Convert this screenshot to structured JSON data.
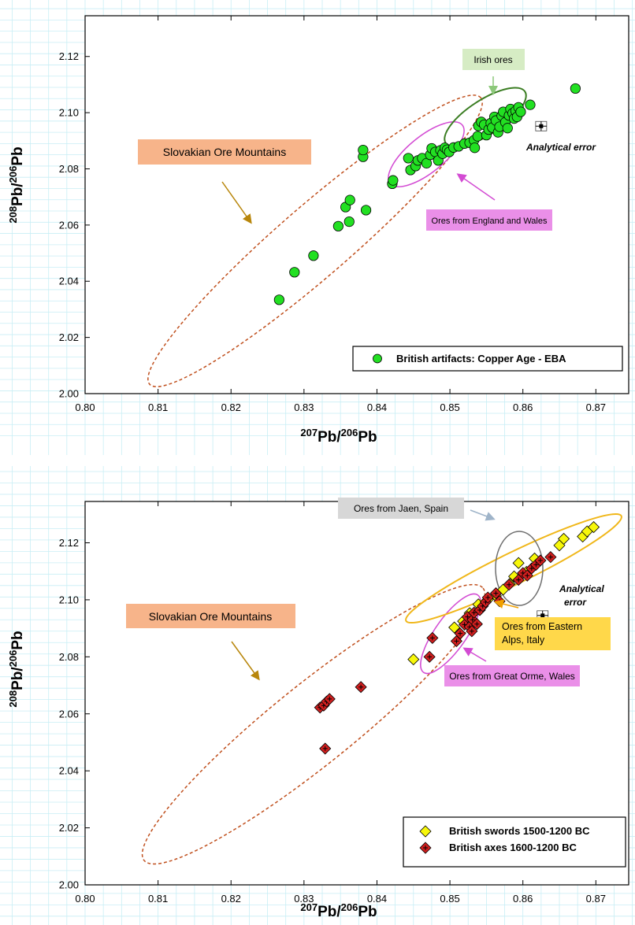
{
  "colors": {
    "grid": "#c8eef5",
    "green_marker": "#22e022",
    "yellow_marker": "#f7f70a",
    "red_marker": "#d21f1f",
    "slovakian_ellipse": "#c0501e",
    "irish_ellipse": "#3a7d22",
    "england_ellipse": "#d34bd3",
    "jaen_ellipse": "#6e6e6e",
    "alps_ellipse": "#f0b71a",
    "slovakian_box": "#f7b48a",
    "irish_box": "#d6ecc4",
    "england_box": "#ea8fe8",
    "jaen_box": "#d7d7d7",
    "alps_box": "#ffd84a"
  },
  "chart_data": [
    {
      "type": "scatter",
      "xlabel": {
        "sup1": "207",
        "base1": "Pb/",
        "sup2": "206",
        "base2": "Pb"
      },
      "ylabel": {
        "sup1": "208",
        "base1": "Pb/",
        "sup2": "206",
        "base2": "Pb"
      },
      "xlim": [
        0.8,
        0.875
      ],
      "ylim": [
        2.0,
        2.13
      ],
      "xticks": [
        "0.80",
        "0.81",
        "0.82",
        "0.83",
        "0.84",
        "0.85",
        "0.86",
        "0.87"
      ],
      "yticks": [
        "2.00",
        "2.02",
        "2.04",
        "2.06",
        "2.08",
        "2.10",
        "2.12"
      ],
      "grid": true,
      "legend_position": "bottom-right",
      "series": [
        {
          "name": "British artifacts: Copper Age - EBA",
          "marker": "circle",
          "points": [
            [
              0.8266,
              2.0334
            ],
            [
              0.8287,
              2.0432
            ],
            [
              0.8313,
              2.0491
            ],
            [
              0.8347,
              2.0596
            ],
            [
              0.8362,
              2.0612
            ],
            [
              0.8357,
              2.0664
            ],
            [
              0.8363,
              2.0689
            ],
            [
              0.8385,
              2.0653
            ],
            [
              0.8381,
              2.0843
            ],
            [
              0.8381,
              2.0867
            ],
            [
              0.8421,
              2.0747
            ],
            [
              0.8422,
              2.0759
            ],
            [
              0.8443,
              2.0838
            ],
            [
              0.8446,
              2.0796
            ],
            [
              0.8453,
              2.081
            ],
            [
              0.8456,
              2.083
            ],
            [
              0.8462,
              2.0838
            ],
            [
              0.8468,
              2.082
            ],
            [
              0.8473,
              2.085
            ],
            [
              0.8475,
              2.0873
            ],
            [
              0.848,
              2.086
            ],
            [
              0.8484,
              2.083
            ],
            [
              0.8487,
              2.0866
            ],
            [
              0.849,
              2.0854
            ],
            [
              0.8493,
              2.0875
            ],
            [
              0.8496,
              2.0868
            ],
            [
              0.8499,
              2.086
            ],
            [
              0.8505,
              2.0876
            ],
            [
              0.8512,
              2.088
            ],
            [
              0.852,
              2.089
            ],
            [
              0.8527,
              2.0893
            ],
            [
              0.8533,
              2.0902
            ],
            [
              0.8538,
              2.0916
            ],
            [
              0.8534,
              2.0875
            ],
            [
              0.8539,
              2.0953
            ],
            [
              0.8543,
              2.0967
            ],
            [
              0.8547,
              2.0957
            ],
            [
              0.855,
              2.092
            ],
            [
              0.8553,
              2.094
            ],
            [
              0.8556,
              2.0963
            ],
            [
              0.8558,
              2.0947
            ],
            [
              0.8561,
              2.0985
            ],
            [
              0.8563,
              2.0972
            ],
            [
              0.8566,
              2.093
            ],
            [
              0.8568,
              2.095
            ],
            [
              0.8571,
              2.0989
            ],
            [
              0.8573,
              2.1003
            ],
            [
              0.8576,
              2.0966
            ],
            [
              0.8579,
              2.0945
            ],
            [
              0.8581,
              2.099
            ],
            [
              0.8583,
              2.1013
            ],
            [
              0.8586,
              2.0998
            ],
            [
              0.8588,
              2.0979
            ],
            [
              0.859,
              2.1006
            ],
            [
              0.8592,
              2.0985
            ],
            [
              0.8594,
              2.1019
            ],
            [
              0.8597,
              2.1003
            ],
            [
              0.861,
              2.1028
            ],
            [
              0.8672,
              2.1086
            ]
          ]
        }
      ],
      "error_bar": {
        "x": 0.8625,
        "y": 2.0952,
        "label": "Analytical  error"
      },
      "annotations": [
        {
          "text": "Slovakian Ore Mountains",
          "region": "slovakian"
        },
        {
          "text": "Irish ores",
          "region": "irish"
        },
        {
          "text": "Ores from England  and Wales",
          "region": "england"
        }
      ]
    },
    {
      "type": "scatter",
      "xlabel": {
        "sup1": "207",
        "base1": "Pb/",
        "sup2": "206",
        "base2": "Pb"
      },
      "ylabel": {
        "sup1": "208",
        "base1": "Pb/",
        "sup2": "206",
        "base2": "Pb"
      },
      "xlim": [
        0.8,
        0.875
      ],
      "ylim": [
        2.0,
        2.13
      ],
      "xticks": [
        "0.80",
        "0.81",
        "0.82",
        "0.83",
        "0.84",
        "0.85",
        "0.86",
        "0.87"
      ],
      "yticks": [
        "2.00",
        "2.02",
        "2.04",
        "2.06",
        "2.08",
        "2.10",
        "2.12"
      ],
      "grid": true,
      "legend_position": "bottom-right",
      "series": [
        {
          "name": "British swords 1500-1200 BC",
          "marker": "diamond",
          "points": [
            [
              0.845,
              2.0791
            ],
            [
              0.8506,
              2.0903
            ],
            [
              0.8518,
              2.0925
            ],
            [
              0.8527,
              2.0953
            ],
            [
              0.8539,
              2.0984
            ],
            [
              0.8552,
              2.1001
            ],
            [
              0.8563,
              2.1014
            ],
            [
              0.8573,
              2.1036
            ],
            [
              0.8582,
              2.1056
            ],
            [
              0.8588,
              2.1082
            ],
            [
              0.8594,
              2.1129
            ],
            [
              0.8605,
              2.1098
            ],
            [
              0.8616,
              2.1145
            ],
            [
              0.865,
              2.1191
            ],
            [
              0.8656,
              2.1214
            ],
            [
              0.8682,
              2.1222
            ],
            [
              0.8688,
              2.124
            ],
            [
              0.8697,
              2.1255
            ]
          ]
        },
        {
          "name": "British axes 1600-1200 BC",
          "marker": "diamond-cross",
          "points": [
            [
              0.8322,
              2.0622
            ],
            [
              0.8327,
              2.0629
            ],
            [
              0.8331,
              2.0643
            ],
            [
              0.8335,
              2.0652
            ],
            [
              0.8329,
              2.0478
            ],
            [
              0.8378,
              2.0694
            ],
            [
              0.8472,
              2.08
            ],
            [
              0.8476,
              2.0866
            ],
            [
              0.8509,
              2.0855
            ],
            [
              0.8514,
              2.0882
            ],
            [
              0.852,
              2.0913
            ],
            [
              0.8524,
              2.094
            ],
            [
              0.8527,
              2.0905
            ],
            [
              0.853,
              2.089
            ],
            [
              0.8531,
              2.093
            ],
            [
              0.8533,
              2.0955
            ],
            [
              0.8537,
              2.0915
            ],
            [
              0.8541,
              2.0964
            ],
            [
              0.8545,
              2.0978
            ],
            [
              0.8549,
              2.0992
            ],
            [
              0.8552,
              2.1008
            ],
            [
              0.8563,
              2.1023
            ],
            [
              0.8568,
              2.0995
            ],
            [
              0.8581,
              2.1053
            ],
            [
              0.8594,
              2.107
            ],
            [
              0.86,
              2.1094
            ],
            [
              0.8606,
              2.1085
            ],
            [
              0.8612,
              2.111
            ],
            [
              0.8618,
              2.1123
            ],
            [
              0.8624,
              2.1138
            ],
            [
              0.8638,
              2.115
            ]
          ]
        }
      ],
      "error_bar": {
        "x": 0.8627,
        "y": 2.0945,
        "label": "Analytical\nerror"
      },
      "annotations": [
        {
          "text": "Slovakian Ore Mountains",
          "region": "slovakian"
        },
        {
          "text": "Ores from Jaen, Spain",
          "region": "jaen"
        },
        {
          "text": "Ores from Eastern Alps, Italy",
          "region": "alps"
        },
        {
          "text": "Ores from Great Orme, Wales",
          "region": "orme"
        }
      ]
    }
  ],
  "panels": [
    {
      "legend": {
        "items": [
          "British artifacts: Copper Age - EBA"
        ]
      },
      "labels": {
        "slovakian": "Slovakian Ore Mountains",
        "irish": "Irish ores",
        "england": "Ores from England  and Wales",
        "error": "Analytical  error"
      }
    },
    {
      "legend": {
        "items": [
          "British swords 1500-1200 BC",
          "British axes 1600-1200 BC"
        ]
      },
      "labels": {
        "slovakian": "Slovakian Ore Mountains",
        "jaen": "Ores from Jaen, Spain",
        "alps_line1": "Ores from Eastern",
        "alps_line2": "Alps, Italy",
        "orme": "Ores from Great Orme, Wales",
        "error_line1": "Analytical",
        "error_line2": "error"
      }
    }
  ]
}
